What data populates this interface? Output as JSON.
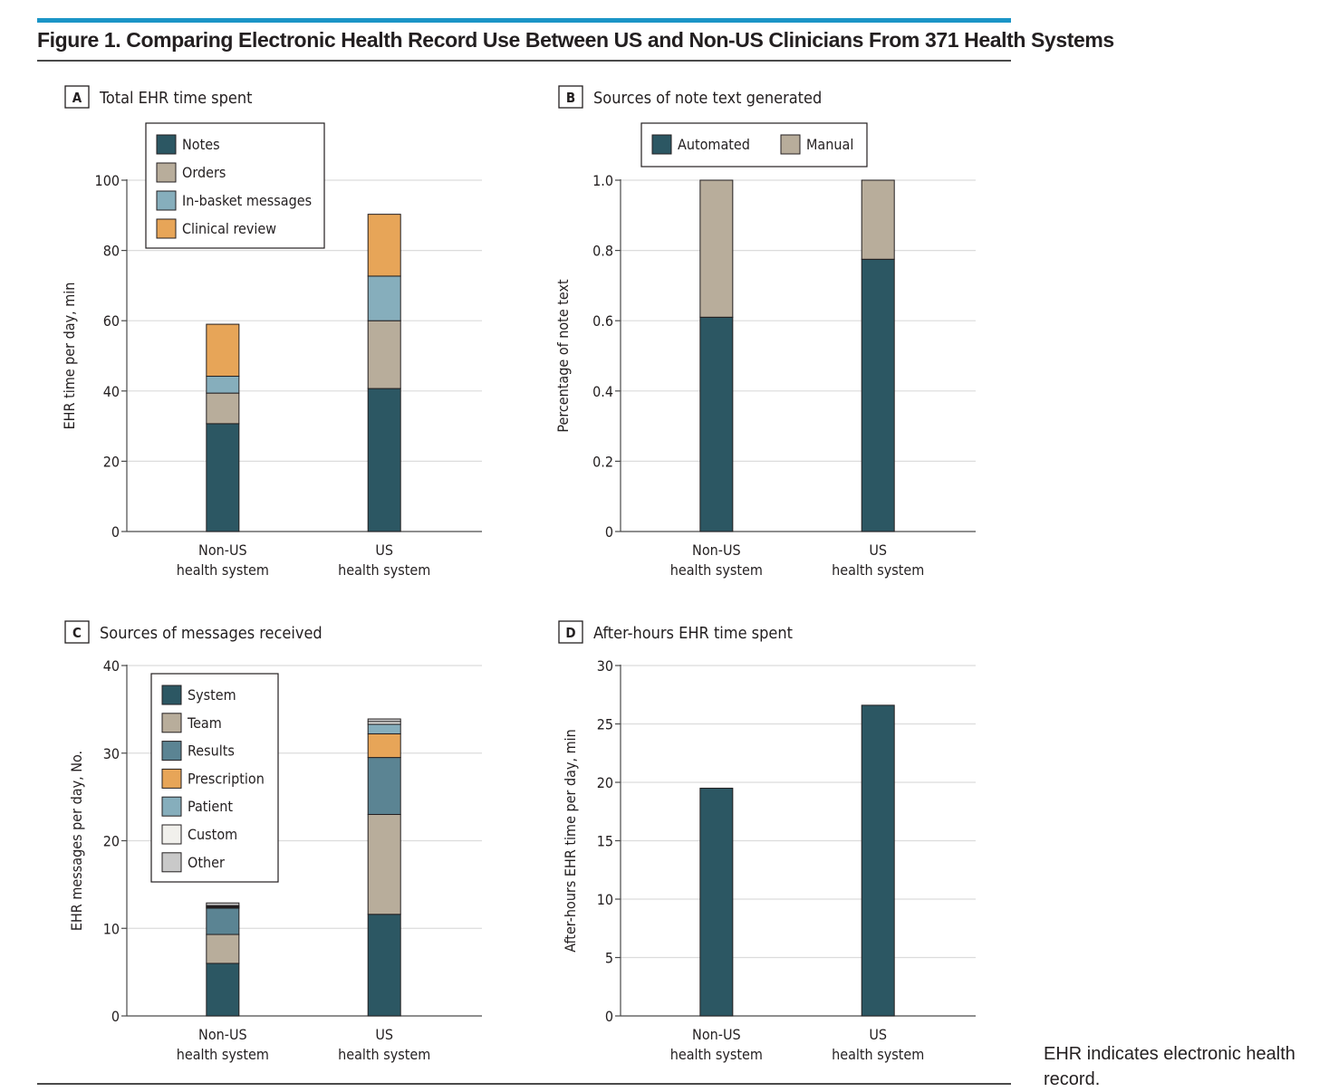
{
  "figure": {
    "title": "Figure 1. Comparing Electronic Health Record Use Between US and Non-US Clinicians From 371 Health Systems",
    "footnote": "EHR indicates electronic health record.",
    "accent_color": "#1b95c7"
  },
  "chart_data": [
    {
      "panel": "A",
      "panel_title": "Total EHR time spent",
      "type": "bar",
      "stacked": true,
      "categories": [
        [
          "Non-US",
          "health system"
        ],
        [
          "US",
          "health system"
        ]
      ],
      "ylabel": "EHR time per day, min",
      "ylim": [
        0,
        100
      ],
      "yticks": [
        "0",
        "20",
        "40",
        "60",
        "80",
        "100"
      ],
      "ytick_values": [
        0,
        20,
        40,
        60,
        80,
        100
      ],
      "grid": true,
      "legend_position": "top-left",
      "series": [
        {
          "name": "Notes",
          "color": "#2c5763",
          "values": [
            30.7,
            40.7
          ]
        },
        {
          "name": "Orders",
          "color": "#b8ad9b",
          "values": [
            8.7,
            19.3
          ]
        },
        {
          "name": "In-basket messages",
          "color": "#86aebc",
          "values": [
            4.8,
            12.7
          ]
        },
        {
          "name": "Clinical review",
          "color": "#e7a558",
          "values": [
            14.8,
            17.6
          ]
        }
      ]
    },
    {
      "panel": "B",
      "panel_title": "Sources of note text generated",
      "type": "bar",
      "stacked": true,
      "categories": [
        [
          "Non-US",
          "health system"
        ],
        [
          "US",
          "health system"
        ]
      ],
      "ylabel": "Percentage of note text",
      "ylim": [
        0,
        1.0
      ],
      "yticks": [
        "0",
        "0.2",
        "0.4",
        "0.6",
        "0.8",
        "1.0"
      ],
      "ytick_values": [
        0,
        0.2,
        0.4,
        0.6,
        0.8,
        1.0
      ],
      "grid": true,
      "legend_position": "top",
      "series": [
        {
          "name": "Automated",
          "color": "#2c5763",
          "values": [
            0.61,
            0.775
          ]
        },
        {
          "name": "Manual",
          "color": "#b8ad9b",
          "values": [
            0.39,
            0.225
          ]
        }
      ]
    },
    {
      "panel": "C",
      "panel_title": "Sources of messages received",
      "type": "bar",
      "stacked": true,
      "categories": [
        [
          "Non-US",
          "health system"
        ],
        [
          "US",
          "health system"
        ]
      ],
      "ylabel": "EHR messages per day, No.",
      "ylim": [
        0,
        40
      ],
      "yticks": [
        "0",
        "10",
        "20",
        "30",
        "40"
      ],
      "ytick_values": [
        0,
        10,
        20,
        30,
        40
      ],
      "grid": true,
      "legend_position": "top-left",
      "series": [
        {
          "name": "System",
          "color": "#2c5763",
          "values": [
            6.0,
            11.6
          ]
        },
        {
          "name": "Team",
          "color": "#b8ad9b",
          "values": [
            3.3,
            11.4
          ]
        },
        {
          "name": "Results",
          "color": "#5b8493",
          "values": [
            3.0,
            6.5
          ]
        },
        {
          "name": "Prescription",
          "color": "#e7a558",
          "values": [
            0.1,
            2.7
          ]
        },
        {
          "name": "Patient",
          "color": "#86aebc",
          "values": [
            0.1,
            1.1
          ]
        },
        {
          "name": "Custom",
          "color": "#f1f0ec",
          "values": [
            0.1,
            0.3
          ]
        },
        {
          "name": "Other",
          "color": "#c9c9c9",
          "values": [
            0.3,
            0.3
          ]
        }
      ]
    },
    {
      "panel": "D",
      "panel_title": "After-hours EHR time spent",
      "type": "bar",
      "stacked": false,
      "categories": [
        [
          "Non-US",
          "health system"
        ],
        [
          "US",
          "health system"
        ]
      ],
      "ylabel": "After-hours EHR time per day, min",
      "ylim": [
        0,
        30
      ],
      "yticks": [
        "0",
        "5",
        "10",
        "15",
        "20",
        "25",
        "30"
      ],
      "ytick_values": [
        0,
        5,
        10,
        15,
        20,
        25,
        30
      ],
      "grid": true,
      "series": [
        {
          "name": "",
          "color": "#2c5763",
          "values": [
            19.5,
            26.6
          ]
        }
      ]
    }
  ]
}
